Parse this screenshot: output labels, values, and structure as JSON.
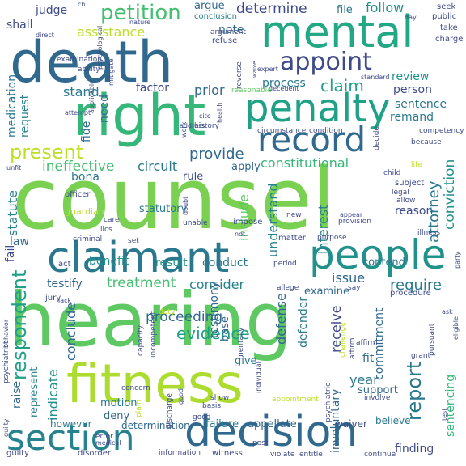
{
  "words": [
    {
      "text": "counsel",
      "color": "#7ad151"
    },
    {
      "text": "hearing",
      "color": "#5ec962"
    },
    {
      "text": "death",
      "color": "#31688e"
    },
    {
      "text": "fitness",
      "color": "#addc30"
    },
    {
      "text": "right",
      "color": "#35b779"
    },
    {
      "text": "mental",
      "color": "#22a884"
    },
    {
      "text": "penalty",
      "color": "#1fa187"
    },
    {
      "text": "claimant",
      "color": "#2a788e"
    },
    {
      "text": "people",
      "color": "#21918c"
    },
    {
      "text": "decision",
      "color": "#31688e"
    },
    {
      "text": "section",
      "color": "#26828e"
    },
    {
      "text": "record",
      "color": "#31688e"
    },
    {
      "text": "appoint",
      "color": "#3e4a89"
    },
    {
      "text": "petition",
      "color": "#44bf70"
    },
    {
      "text": "present",
      "color": "#bddf26"
    },
    {
      "text": "evidence",
      "color": "#1f9e89"
    },
    {
      "text": "respondent",
      "color": "#1fa187"
    },
    {
      "text": "claim",
      "color": "#1f9e89"
    },
    {
      "text": "provide",
      "color": "#31688e"
    },
    {
      "text": "treatment",
      "color": "#44bf70"
    },
    {
      "text": "constitutional",
      "color": "#35b779"
    },
    {
      "text": "proceeding",
      "color": "#31688e"
    },
    {
      "text": "require",
      "color": "#2a788e"
    },
    {
      "text": "consider",
      "color": "#26828e"
    },
    {
      "text": "determine",
      "color": "#3e4a89"
    },
    {
      "text": "report",
      "color": "#2a788e"
    },
    {
      "text": "follow",
      "color": "#21918c"
    },
    {
      "text": "judge",
      "color": "#3e4a89"
    },
    {
      "text": "assistance",
      "color": "#bddf26"
    },
    {
      "text": "ineffective",
      "color": "#44bf70"
    },
    {
      "text": "circuit",
      "color": "#2a788e"
    },
    {
      "text": "conduct",
      "color": "#2a788e"
    },
    {
      "text": "result",
      "color": "#21918c"
    },
    {
      "text": "benefit",
      "color": "#21918c"
    },
    {
      "text": "testify",
      "color": "#31688e"
    },
    {
      "text": "issue",
      "color": "#31688e"
    },
    {
      "text": "process",
      "color": "#2a788e"
    },
    {
      "text": "sentence",
      "color": "#2a788e"
    },
    {
      "text": "review",
      "color": "#21918c"
    },
    {
      "text": "person",
      "color": "#3e4a89"
    },
    {
      "text": "attorney",
      "color": "#2a788e"
    },
    {
      "text": "conviction",
      "color": "#21918c"
    },
    {
      "text": "reason",
      "color": "#3e4a89"
    },
    {
      "text": "understand",
      "color": "#26828e"
    },
    {
      "text": "include",
      "color": "#5ec962"
    },
    {
      "text": "interest",
      "color": "#26828e"
    },
    {
      "text": "defense",
      "color": "#31688e"
    },
    {
      "text": "testimony",
      "color": "#31688e"
    },
    {
      "text": "conclude",
      "color": "#31688e"
    },
    {
      "text": "indicate",
      "color": "#21918c"
    },
    {
      "text": "raise",
      "color": "#31688e"
    },
    {
      "text": "commitment",
      "color": "#31688e"
    },
    {
      "text": "receive",
      "color": "#3e4a89"
    },
    {
      "text": "defender",
      "color": "#2a788e"
    },
    {
      "text": "year",
      "color": "#2a788e"
    },
    {
      "text": "finding",
      "color": "#3e4a89"
    },
    {
      "text": "sentencing",
      "color": "#35b779"
    },
    {
      "text": "fail",
      "color": "#3e4a89"
    },
    {
      "text": "law",
      "color": "#31688e"
    },
    {
      "text": "statute",
      "color": "#26828e"
    },
    {
      "text": "bona",
      "color": "#2a788e"
    },
    {
      "text": "fide",
      "color": "#31688e"
    },
    {
      "text": "factor",
      "color": "#3e4a89"
    },
    {
      "text": "prior",
      "color": "#31688e"
    },
    {
      "text": "stand",
      "color": "#2a788e"
    },
    {
      "text": "note",
      "color": "#31688e"
    },
    {
      "text": "argue",
      "color": "#31688e"
    },
    {
      "text": "file",
      "color": "#2a788e"
    },
    {
      "text": "shall",
      "color": "#3e4a89"
    },
    {
      "text": "request",
      "color": "#26828e"
    },
    {
      "text": "medication",
      "color": "#2a788e"
    },
    {
      "text": "need",
      "color": "#31688e"
    },
    {
      "text": "remand",
      "color": "#2a788e"
    },
    {
      "text": "apply",
      "color": "#31688e"
    },
    {
      "text": "rule",
      "color": "#3e4a89"
    },
    {
      "text": "statutory",
      "color": "#2a788e"
    },
    {
      "text": "fit",
      "color": "#31688e"
    },
    {
      "text": "examine",
      "color": "#31688e"
    },
    {
      "text": "contend",
      "color": "#2a788e"
    },
    {
      "text": "deny",
      "color": "#31688e"
    },
    {
      "text": "motion",
      "color": "#2a788e"
    },
    {
      "text": "support",
      "color": "#31688e"
    },
    {
      "text": "base",
      "color": "#31688e"
    },
    {
      "text": "give",
      "color": "#2a788e"
    },
    {
      "text": "failure",
      "color": "#2a788e"
    },
    {
      "text": "appellate",
      "color": "#31688e"
    },
    {
      "text": "determination",
      "color": "#31688e"
    },
    {
      "text": "involuntary",
      "color": "#31688e"
    },
    {
      "text": "believe",
      "color": "#2a788e"
    },
    {
      "text": "waiver",
      "color": "#3e4a89"
    },
    {
      "text": "represent",
      "color": "#26828e"
    },
    {
      "text": "however",
      "color": "#2a788e"
    },
    {
      "text": "conclusion",
      "color": "#26828e"
    },
    {
      "text": "public",
      "color": "#3e4a89"
    },
    {
      "text": "seek",
      "color": "#3e4a89"
    },
    {
      "text": "take",
      "color": "#3e4a89"
    },
    {
      "text": "charge",
      "color": "#3e4a89"
    },
    {
      "text": "ability",
      "color": "#3e4a89"
    },
    {
      "text": "examination",
      "color": "#3e4a89"
    },
    {
      "text": "mitigate",
      "color": "#3e4a89"
    },
    {
      "text": "exist",
      "color": "#3e4a89"
    },
    {
      "text": "argument",
      "color": "#3e4a89"
    },
    {
      "text": "refuse",
      "color": "#3e4a89"
    },
    {
      "text": "expert",
      "color": "#3e4a89"
    },
    {
      "text": "reverse",
      "color": "#3e4a89"
    },
    {
      "text": "reasonable",
      "color": "#5ec962"
    },
    {
      "text": "circumstance",
      "color": "#3e4a89"
    },
    {
      "text": "condition",
      "color": "#3e4a89"
    },
    {
      "text": "decedent",
      "color": "#3e4a89"
    },
    {
      "text": "decide",
      "color": "#3e4a89"
    },
    {
      "text": "competency",
      "color": "#3e4a89"
    },
    {
      "text": "because",
      "color": "#3e4a89"
    },
    {
      "text": "child",
      "color": "#3e4a89"
    },
    {
      "text": "life",
      "color": "#bddf26"
    },
    {
      "text": "subject",
      "color": "#3e4a89"
    },
    {
      "text": "legal",
      "color": "#3e4a89"
    },
    {
      "text": "allow",
      "color": "#3e4a89"
    },
    {
      "text": "new",
      "color": "#3e4a89"
    },
    {
      "text": "appear",
      "color": "#3e4a89"
    },
    {
      "text": "provision",
      "color": "#3e4a89"
    },
    {
      "text": "illness",
      "color": "#3e4a89"
    },
    {
      "text": "matter",
      "color": "#3e4a89"
    },
    {
      "text": "purpose",
      "color": "#3e4a89"
    },
    {
      "text": "period",
      "color": "#3e4a89"
    },
    {
      "text": "allege",
      "color": "#3e4a89"
    },
    {
      "text": "say",
      "color": "#3e4a89"
    },
    {
      "text": "procedure",
      "color": "#3e4a89"
    },
    {
      "text": "challenge",
      "color": "#bddf26"
    },
    {
      "text": "affirm",
      "color": "#3e4a89"
    },
    {
      "text": "pursuant",
      "color": "#3e4a89"
    },
    {
      "text": "grant",
      "color": "#3e4a89"
    },
    {
      "text": "psychiatric",
      "color": "#3e4a89"
    },
    {
      "text": "involve",
      "color": "#3e4a89"
    },
    {
      "text": "appointment",
      "color": "#bddf26"
    },
    {
      "text": "show",
      "color": "#3e4a89"
    },
    {
      "text": "basis",
      "color": "#3e4a89"
    },
    {
      "text": "discharge",
      "color": "#3e4a89"
    },
    {
      "text": "concern",
      "color": "#3e4a89"
    },
    {
      "text": "capacity",
      "color": "#3e4a89"
    },
    {
      "text": "incompetent",
      "color": "#3e4a89"
    },
    {
      "text": "duty",
      "color": "#bddf26"
    },
    {
      "text": "mentally",
      "color": "#3e4a89"
    },
    {
      "text": "impose",
      "color": "#3e4a89"
    },
    {
      "text": "unable",
      "color": "#3e4a89"
    },
    {
      "text": "not",
      "color": "#3e4a89"
    },
    {
      "text": "doubt",
      "color": "#3e4a89"
    },
    {
      "text": "care",
      "color": "#3e4a89"
    },
    {
      "text": "ilcs",
      "color": "#3e4a89"
    },
    {
      "text": "set",
      "color": "#3e4a89"
    },
    {
      "text": "criminal",
      "color": "#3e4a89"
    },
    {
      "text": "guardian",
      "color": "#bddf26"
    },
    {
      "text": "officer",
      "color": "#3e4a89"
    },
    {
      "text": "unfit",
      "color": "#3e4a89"
    },
    {
      "text": "attempt",
      "color": "#3e4a89"
    },
    {
      "text": "direct",
      "color": "#3e4a89"
    },
    {
      "text": "jury",
      "color": "#3e4a89"
    },
    {
      "text": "act",
      "color": "#3e4a89"
    },
    {
      "text": "lack",
      "color": "#3e4a89"
    },
    {
      "text": "psychiatrist",
      "color": "#3e4a89"
    },
    {
      "text": "behavior",
      "color": "#3e4a89"
    },
    {
      "text": "guilty",
      "color": "#3e4a89"
    },
    {
      "text": "disorder",
      "color": "#3e4a89"
    },
    {
      "text": "information",
      "color": "#3e4a89"
    },
    {
      "text": "witness",
      "color": "#3e4a89"
    },
    {
      "text": "violate",
      "color": "#3e4a89"
    },
    {
      "text": "entitle",
      "color": "#3e4a89"
    },
    {
      "text": "continue",
      "color": "#3e4a89"
    },
    {
      "text": "error",
      "color": "#3e4a89"
    },
    {
      "text": "medical",
      "color": "#3e4a89"
    },
    {
      "text": "post",
      "color": "#3e4a89"
    },
    {
      "text": "plain",
      "color": "#bddf26"
    },
    {
      "text": "good",
      "color": "#3e4a89"
    },
    {
      "text": "individual",
      "color": "#3e4a89"
    },
    {
      "text": "ch",
      "color": "#3e4a89"
    },
    {
      "text": "nature",
      "color": "#3e4a89"
    },
    {
      "text": "day",
      "color": "#3e4a89"
    },
    {
      "text": "standard",
      "color": "#3e4a89"
    },
    {
      "text": "address",
      "color": "#3e4a89"
    },
    {
      "text": "history",
      "color": "#3e4a89"
    },
    {
      "text": "cite",
      "color": "#3e4a89"
    },
    {
      "text": "health",
      "color": "#3e4a89"
    },
    {
      "text": "ask",
      "color": "#3e4a89"
    },
    {
      "text": "party",
      "color": "#3e4a89"
    },
    {
      "text": "test",
      "color": "#3e4a89"
    },
    {
      "text": "eligible",
      "color": "#3e4a89"
    },
    {
      "text": "applicable",
      "color": "#3e4a89"
    },
    {
      "text": "psychological",
      "color": "#3e4a89"
    },
    {
      "text": "work",
      "color": "#3e4a89"
    },
    {
      "text": "waive",
      "color": "#3e4a89"
    },
    {
      "text": "establish",
      "color": "#3e4a89"
    },
    {
      "text": "author",
      "color": "#3e4a89"
    }
  ]
}
